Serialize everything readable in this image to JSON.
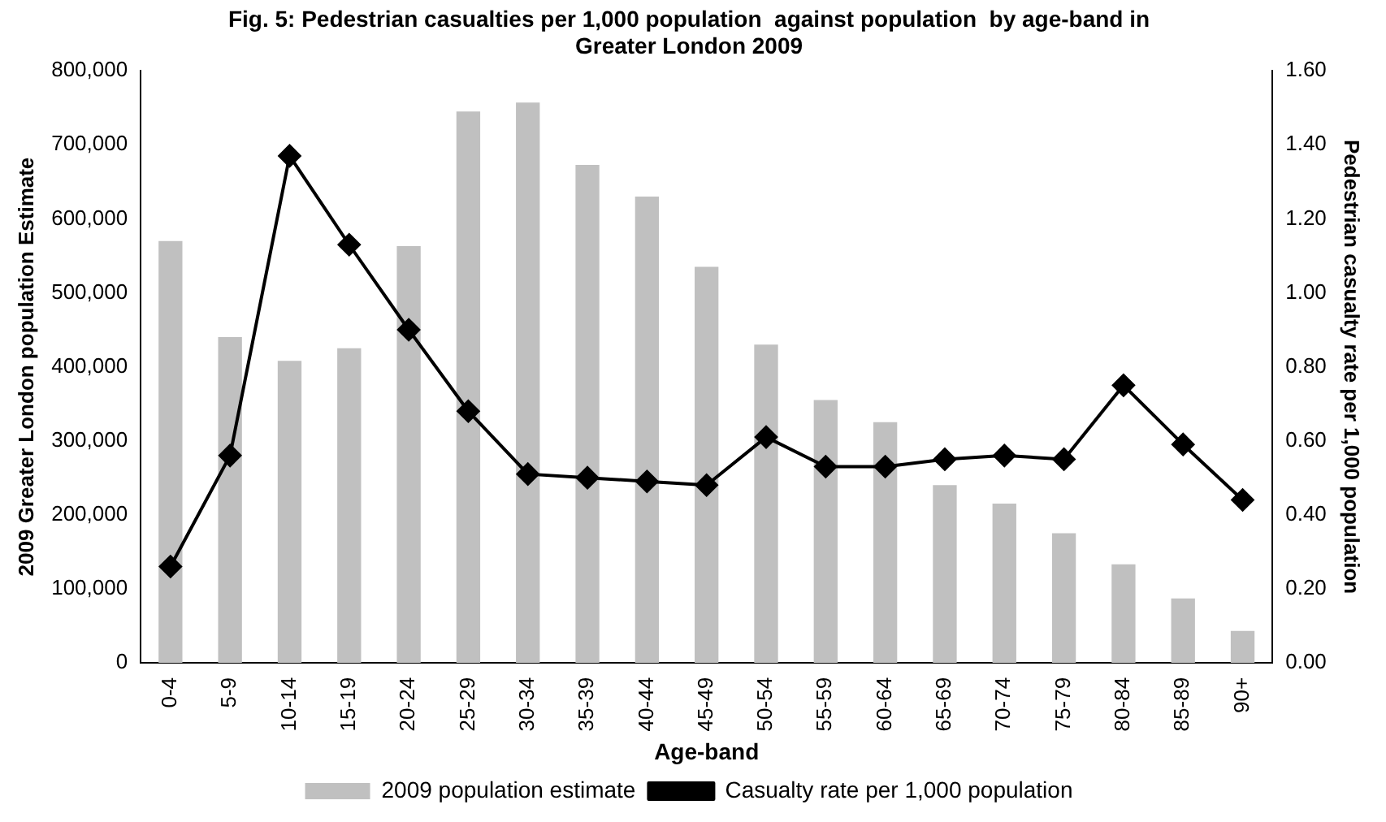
{
  "chart_data": {
    "type": "bar",
    "title": "Fig. 5: Pedestrian casualties per 1,000 population  against population  by age-band in Greater London 2009",
    "xlabel": "Age-band",
    "ylabel": "2009 Greater London population Estimate",
    "y2label": "Pedestrian casualty rate per 1,000 population",
    "categories": [
      "0-4",
      "5-9",
      "10-14",
      "15-19",
      "20-24",
      "25-29",
      "30-34",
      "35-39",
      "40-44",
      "45-49",
      "50-54",
      "55-59",
      "60-64",
      "65-69",
      "70-74",
      "75-79",
      "80-84",
      "85-89",
      "90+"
    ],
    "series": [
      {
        "name": "2009 population estimate",
        "color": "#c0c0c0",
        "values": [
          570000,
          440000,
          408000,
          425000,
          563000,
          745000,
          757000,
          673000,
          630000,
          535000,
          430000,
          355000,
          325000,
          240000,
          215000,
          175000,
          133000,
          87000,
          43000
        ]
      },
      {
        "name": "Casualty rate per 1,000 population",
        "type": "line",
        "axis": "y2",
        "color": "#000000",
        "marker": "diamond",
        "values": [
          0.26,
          0.56,
          1.37,
          1.13,
          0.9,
          0.68,
          0.51,
          0.5,
          0.49,
          0.48,
          0.61,
          0.53,
          0.53,
          0.55,
          0.56,
          0.55,
          0.75,
          0.59,
          0.44
        ]
      }
    ],
    "ylim": [
      0,
      800000
    ],
    "yticks": [
      {
        "value": 0,
        "label": "0"
      },
      {
        "value": 100000,
        "label": "100,000"
      },
      {
        "value": 200000,
        "label": "200,000"
      },
      {
        "value": 300000,
        "label": "300,000"
      },
      {
        "value": 400000,
        "label": "400,000"
      },
      {
        "value": 500000,
        "label": "500,000"
      },
      {
        "value": 600000,
        "label": "600,000"
      },
      {
        "value": 700000,
        "label": "700,000"
      },
      {
        "value": 800000,
        "label": "800,000"
      }
    ],
    "y2lim": [
      0,
      1.6
    ],
    "y2ticks": [
      {
        "value": 0,
        "label": "0.00"
      },
      {
        "value": 0.2,
        "label": "0.20"
      },
      {
        "value": 0.4,
        "label": "0.40"
      },
      {
        "value": 0.6,
        "label": "0.60"
      },
      {
        "value": 0.8,
        "label": "0.80"
      },
      {
        "value": 1,
        "label": "1.00"
      },
      {
        "value": 1.2,
        "label": "1.20"
      },
      {
        "value": 1.4,
        "label": "1.40"
      },
      {
        "value": 1.6,
        "label": "1.60"
      }
    ],
    "grid": false,
    "legend": "bottom"
  }
}
